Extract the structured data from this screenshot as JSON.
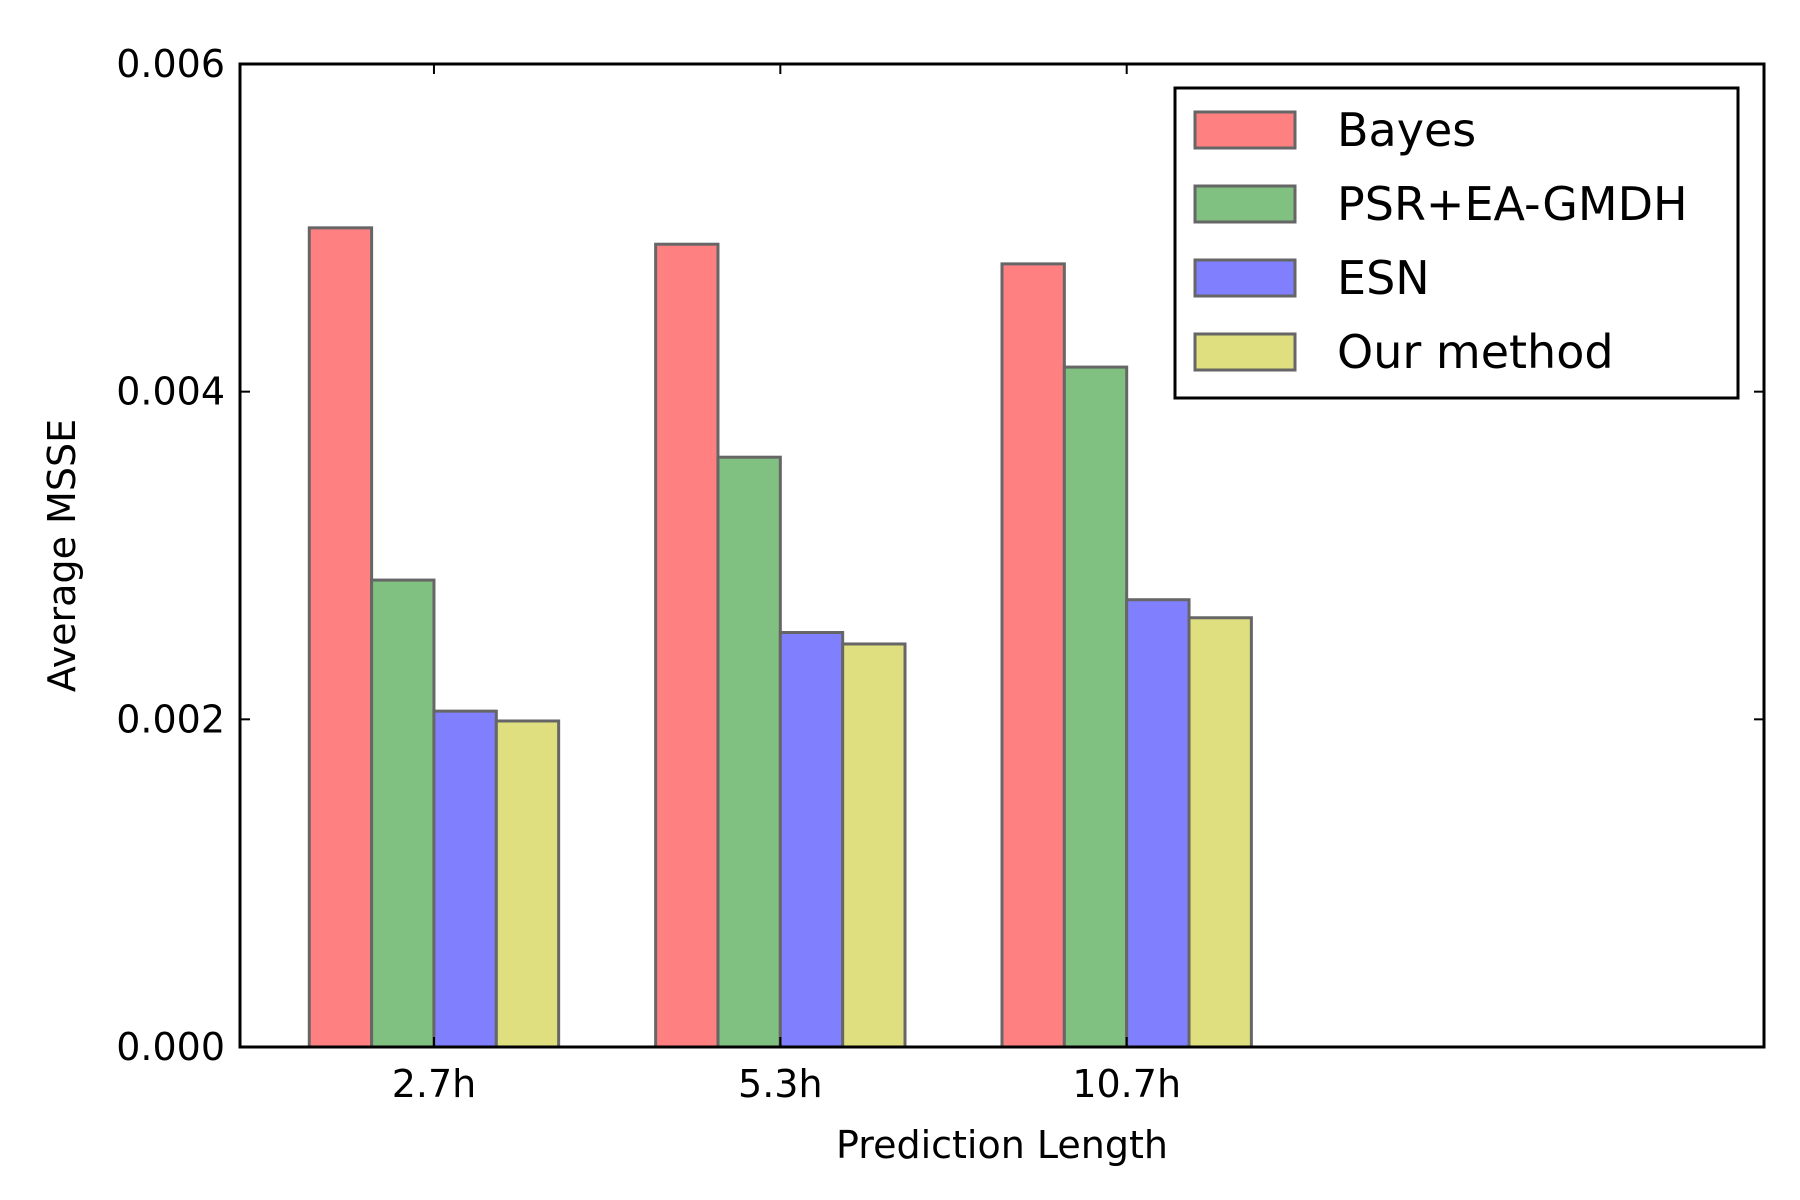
{
  "chart_data": {
    "type": "bar",
    "title": "",
    "xlabel": "Prediction Length",
    "ylabel": "Average MSSE",
    "categories": [
      "2.7h",
      "5.3h",
      "10.7h"
    ],
    "ylim": [
      0,
      0.006
    ],
    "yticks": [
      "0.000",
      "0.002",
      "0.004",
      "0.006"
    ],
    "xlim": [
      -0.2,
      4.2
    ],
    "grid": false,
    "legend_position": "top-right",
    "series": [
      {
        "name": "Bayes",
        "color": "#ff8080",
        "values": [
          0.005,
          0.0049,
          0.00478
        ]
      },
      {
        "name": "PSR+EA-GMDH",
        "color": "#80c080",
        "values": [
          0.00285,
          0.0036,
          0.00415
        ]
      },
      {
        "name": "ESN",
        "color": "#8080ff",
        "values": [
          0.00205,
          0.00253,
          0.00273
        ]
      },
      {
        "name": "Our method",
        "color": "#dfdf80",
        "values": [
          0.00199,
          0.00246,
          0.00262
        ]
      }
    ]
  }
}
